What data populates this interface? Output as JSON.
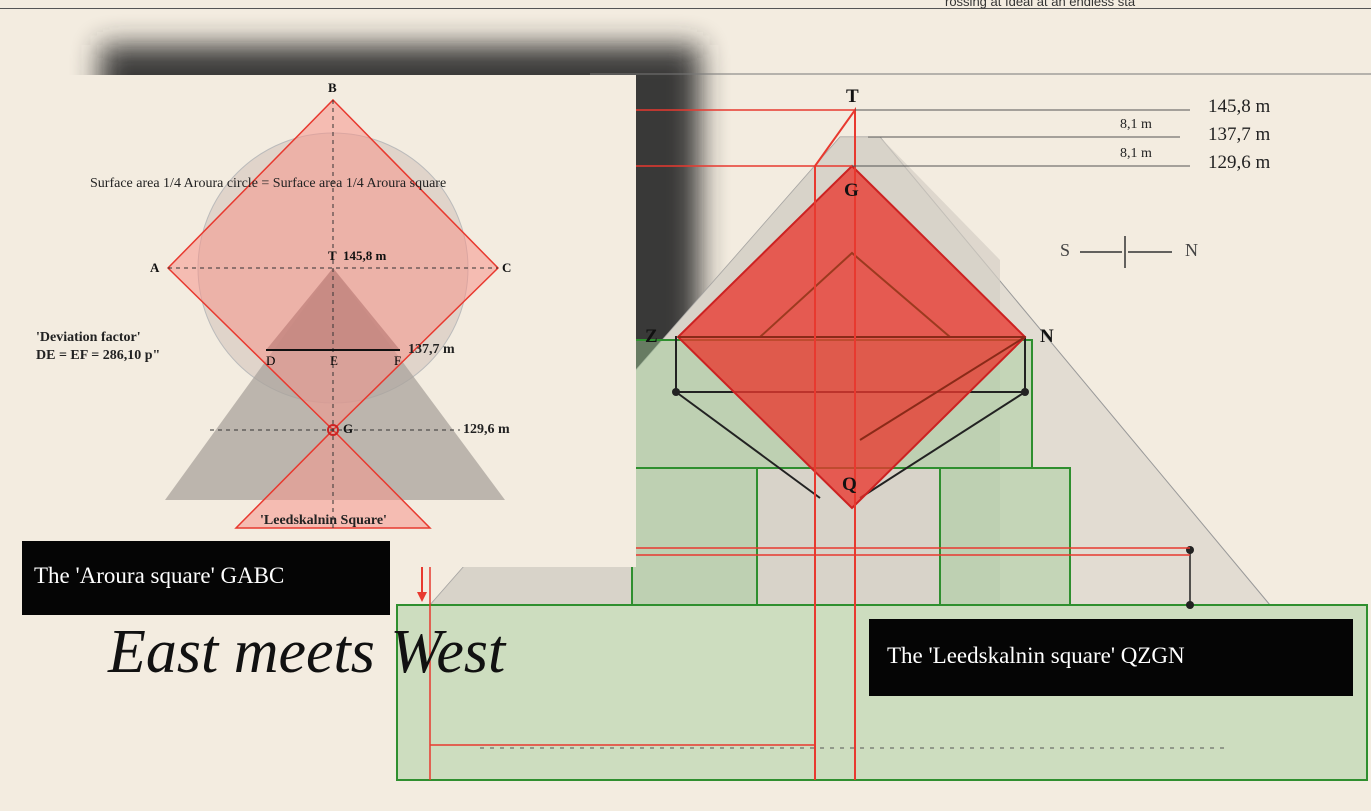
{
  "header_text": "rossing at Ideal at an endless sta",
  "right_panel": {
    "heights": [
      "145,8 m",
      "137,7 m",
      "129,6 m"
    ],
    "gaps": [
      "8,1 m",
      "8,1 m"
    ],
    "points": {
      "T": "T",
      "G": "G",
      "Z": "Z",
      "N": "N",
      "Q": "Q"
    },
    "compass": {
      "s": "S",
      "n": "N"
    }
  },
  "inset": {
    "points": {
      "A": "A",
      "B": "B",
      "C": "C",
      "T": "T",
      "G": "G",
      "D": "D",
      "E": "E",
      "F": "F"
    },
    "caption": "Surface area 1/4 Aroura circle = Surface area 1/4 Aroura square",
    "height_t": "145,8 m",
    "height_d": "137,7 m",
    "height_g": "129,6 m",
    "deviation_line1": "'Deviation factor'",
    "deviation_line2": "DE = EF = 286,10 p\"",
    "leedskalnin": "'Leedskalnin Square'"
  },
  "aroura_caption": "The 'Aroura square' GABC",
  "leedskalnin_caption": "The 'Leedskalnin square' QZGN",
  "title": "East meets West",
  "colors": {
    "red": "#e8392f",
    "green": "#2f8f2f",
    "background": "#f3ece0"
  }
}
